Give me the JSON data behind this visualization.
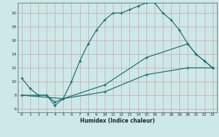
{
  "xlabel": "Humidex (Indice chaleur)",
  "bg_color": "#cce8e8",
  "line_color": "#1a7070",
  "grid_color": "#d4a0a0",
  "xlim": [
    -0.5,
    23.5
  ],
  "ylim": [
    5.5,
    21.5
  ],
  "xticks": [
    0,
    1,
    2,
    3,
    4,
    5,
    6,
    7,
    8,
    9,
    10,
    11,
    12,
    13,
    14,
    15,
    16,
    17,
    18,
    19,
    20,
    21,
    22,
    23
  ],
  "yticks": [
    6,
    8,
    10,
    12,
    14,
    16,
    18,
    20
  ],
  "line1_x": [
    0,
    1,
    2,
    3,
    4,
    5,
    6,
    7,
    8,
    9,
    10,
    11,
    12,
    13,
    14,
    15,
    16,
    17,
    18,
    19,
    20,
    21,
    22,
    23
  ],
  "line1_y": [
    10.5,
    9.0,
    8.0,
    8.0,
    7.0,
    7.5,
    10.0,
    13.0,
    15.5,
    17.5,
    19.0,
    20.0,
    20.0,
    20.5,
    21.0,
    21.5,
    21.5,
    20.0,
    19.0,
    17.5,
    15.5,
    14.0,
    13.0,
    12.0
  ],
  "line2_x": [
    0,
    3,
    4,
    5,
    10,
    15,
    20,
    21,
    22,
    23
  ],
  "line2_y": [
    8.0,
    8.0,
    6.5,
    7.5,
    9.5,
    13.5,
    15.5,
    14.0,
    13.0,
    12.0
  ],
  "line3_x": [
    0,
    5,
    10,
    15,
    20,
    23
  ],
  "line3_y": [
    8.0,
    7.5,
    8.5,
    11.0,
    12.0,
    12.0
  ]
}
